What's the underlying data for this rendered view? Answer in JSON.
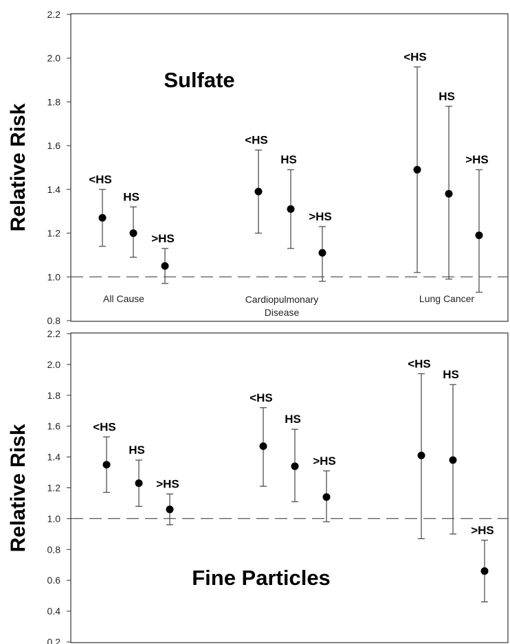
{
  "chart_data": [
    {
      "type": "scatter",
      "title": "Sulfate",
      "ylabel": "Relative Risk",
      "ylim": [
        0.8,
        2.2
      ],
      "yticks": [
        "0.8",
        "1.0",
        "1.2",
        "1.4",
        "1.6",
        "1.8",
        "2.0",
        "2.2"
      ],
      "reference_line": 1.0,
      "categories": [
        "All Cause",
        "Cardiopulmonary\nDisease",
        "Lung Cancer"
      ],
      "points": [
        {
          "label": "<HS",
          "group": 0,
          "value": 1.27,
          "lower": 1.14,
          "upper": 1.4
        },
        {
          "label": "HS",
          "group": 0,
          "value": 1.2,
          "lower": 1.09,
          "upper": 1.32
        },
        {
          "label": ">HS",
          "group": 0,
          "value": 1.05,
          "lower": 0.97,
          "upper": 1.13
        },
        {
          "label": "<HS",
          "group": 1,
          "value": 1.39,
          "lower": 1.2,
          "upper": 1.58
        },
        {
          "label": "HS",
          "group": 1,
          "value": 1.31,
          "lower": 1.13,
          "upper": 1.49
        },
        {
          "label": ">HS",
          "group": 1,
          "value": 1.11,
          "lower": 0.98,
          "upper": 1.23
        },
        {
          "label": "<HS",
          "group": 2,
          "value": 1.49,
          "lower": 1.02,
          "upper": 1.96
        },
        {
          "label": "HS",
          "group": 2,
          "value": 1.38,
          "lower": 0.99,
          "upper": 1.78
        },
        {
          "label": ">HS",
          "group": 2,
          "value": 1.19,
          "lower": 0.93,
          "upper": 1.49
        }
      ]
    },
    {
      "type": "scatter",
      "title": "Fine Particles",
      "ylabel": "Relative Risk",
      "ylim": [
        0.2,
        2.2
      ],
      "yticks": [
        "0.2",
        "0.4",
        "0.6",
        "0.8",
        "1.0",
        "1.2",
        "1.4",
        "1.6",
        "1.8",
        "2.0",
        "2.2"
      ],
      "reference_line": 1.0,
      "categories": [],
      "points": [
        {
          "label": "<HS",
          "group": 0,
          "value": 1.35,
          "lower": 1.17,
          "upper": 1.53
        },
        {
          "label": "HS",
          "group": 0,
          "value": 1.23,
          "lower": 1.08,
          "upper": 1.38
        },
        {
          "label": ">HS",
          "group": 0,
          "value": 1.06,
          "lower": 0.96,
          "upper": 1.16
        },
        {
          "label": "<HS",
          "group": 1,
          "value": 1.47,
          "lower": 1.21,
          "upper": 1.72
        },
        {
          "label": "HS",
          "group": 1,
          "value": 1.34,
          "lower": 1.11,
          "upper": 1.58
        },
        {
          "label": ">HS",
          "group": 1,
          "value": 1.14,
          "lower": 0.98,
          "upper": 1.31
        },
        {
          "label": "<HS",
          "group": 2,
          "value": 1.41,
          "lower": 0.87,
          "upper": 1.94
        },
        {
          "label": "HS",
          "group": 2,
          "value": 1.38,
          "lower": 0.9,
          "upper": 1.87
        },
        {
          "label": ">HS",
          "group": 2,
          "value": 0.66,
          "lower": 0.46,
          "upper": 0.86
        }
      ]
    }
  ]
}
